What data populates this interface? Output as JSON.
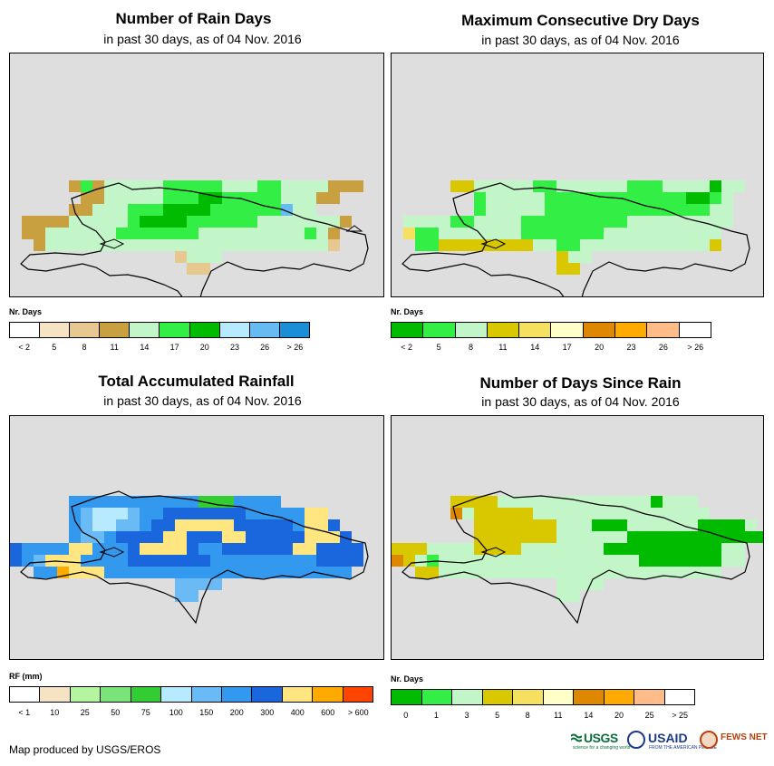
{
  "panels": [
    {
      "id": "rain_days",
      "title": "Number of Rain Days",
      "subtitle": "in past 30 days, as of 04 Nov. 2016",
      "legend": {
        "title": "Nr. Days",
        "colors": [
          "#ffffff",
          "#f5e3c4",
          "#e6c890",
          "#c9a040",
          "#c2f5c8",
          "#33ee44",
          "#00bb00",
          "#b8eaff",
          "#66bbf2",
          "#1a8fd8"
        ],
        "labels": [
          "< 2",
          "5",
          "8",
          "11",
          "14",
          "17",
          "20",
          "23",
          "26",
          "> 26"
        ]
      },
      "map_regions": [
        "#c9a040",
        "#c2f5c8",
        "#33ee44",
        "#00bb00",
        "#66bbf2",
        "#e6c890"
      ]
    },
    {
      "id": "max_dry_days",
      "title": "Maximum Consecutive Dry Days",
      "subtitle": "in past 30 days, as of 04 Nov. 2016",
      "legend": {
        "title": "Nr. Days",
        "colors": [
          "#00bb00",
          "#33ee44",
          "#c2f5c8",
          "#d9c800",
          "#f5e060",
          "#ffffc8",
          "#dd8800",
          "#ffaa00",
          "#ffbb88",
          "#ffffff"
        ],
        "labels": [
          "< 2",
          "5",
          "8",
          "11",
          "14",
          "17",
          "20",
          "23",
          "26",
          "> 26"
        ]
      },
      "map_regions": [
        "#c2f5c8",
        "#33ee44",
        "#00bb00",
        "#d9c800",
        "#f5e060"
      ]
    },
    {
      "id": "accum_rainfall",
      "title": "Total Accumulated Rainfall",
      "subtitle": "in past 30 days, as of 04 Nov. 2016",
      "legend": {
        "title": "RF (mm)",
        "colors": [
          "#ffffff",
          "#f5e3c4",
          "#b4f5a0",
          "#7ae47a",
          "#33cc33",
          "#b8eaff",
          "#6abaf5",
          "#3399ee",
          "#1a66dd",
          "#ffe680",
          "#ffaa00",
          "#ff4400"
        ],
        "labels": [
          "< 1",
          "10",
          "25",
          "50",
          "75",
          "100",
          "150",
          "200",
          "300",
          "400",
          "600",
          "> 600"
        ]
      },
      "map_regions": [
        "#1a66dd",
        "#3399ee",
        "#6abaf5",
        "#b8eaff",
        "#ffe680",
        "#ffaa00",
        "#33cc33"
      ]
    },
    {
      "id": "days_since_rain",
      "title": "Number of Days Since Rain",
      "subtitle": "in past 30 days, as of 04 Nov. 2016",
      "legend": {
        "title": "Nr. Days",
        "colors": [
          "#00bb00",
          "#33ee44",
          "#c2f5c8",
          "#d9c800",
          "#f5e060",
          "#ffffc8",
          "#dd8800",
          "#ffaa00",
          "#ffbb88",
          "#ffffff"
        ],
        "labels": [
          "0",
          "1",
          "3",
          "5",
          "8",
          "11",
          "14",
          "20",
          "25",
          "> 25"
        ]
      },
      "map_regions": [
        "#d9c800",
        "#c2f5c8",
        "#00bb00",
        "#33ee44",
        "#dd8800"
      ]
    }
  ],
  "credit": "Map produced by USGS/EROS",
  "logos": {
    "usgs": "USGS",
    "usgs_tagline": "science for a changing world",
    "usaid": "USAID",
    "usaid_tagline": "FROM THE AMERICAN PEOPLE",
    "fews": "FEWS NET"
  }
}
